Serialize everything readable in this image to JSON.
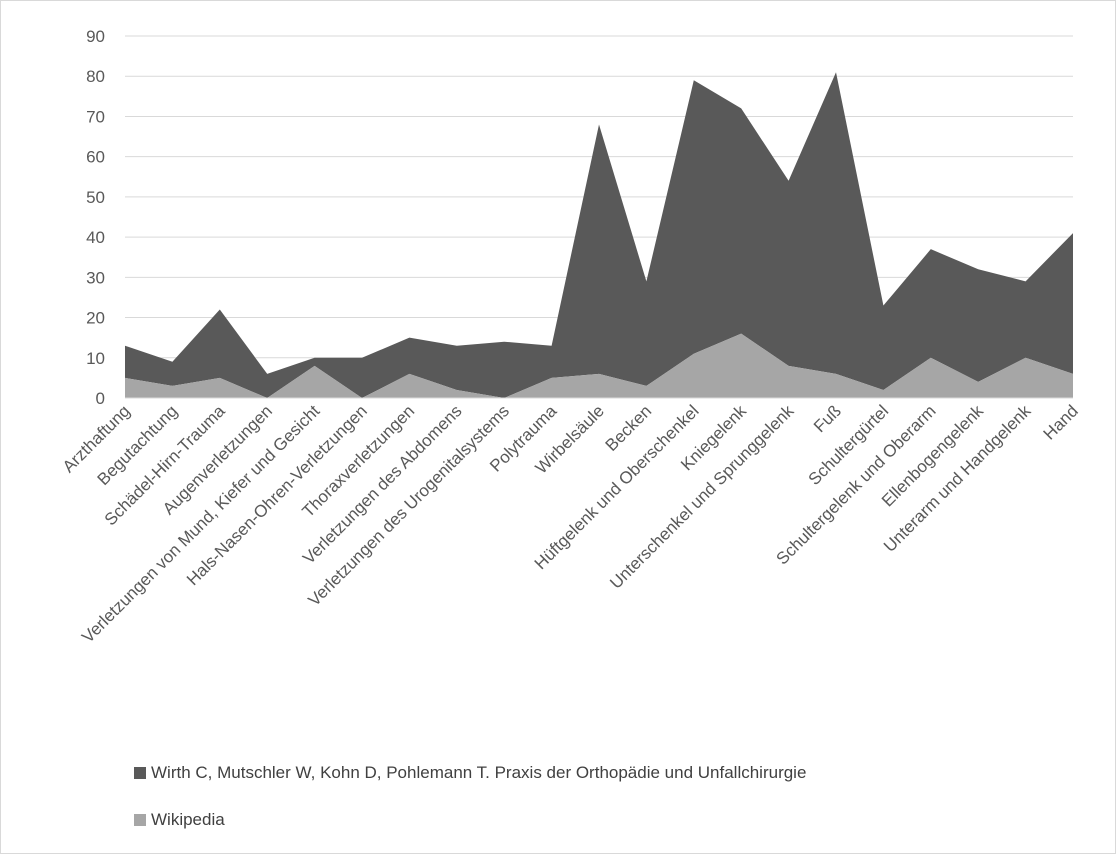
{
  "chart_data": {
    "type": "area",
    "stacked": true,
    "categories": [
      "Arzthaftung",
      "Begutachtung",
      "Schädel-Hirn-Trauma",
      "Augenverletzungen",
      "Verletzungen von Mund, Kiefer und Gesicht",
      "Hals-Nasen-Ohren-Verletzungen",
      "Thoraxverletzungen",
      "Verletzungen des Abdomens",
      "Verletzungen des Urogenitalsystems",
      "Polytrauma",
      "Wirbelsäule",
      "Becken",
      "Hüftgelenk und Oberschenkel",
      "Kniegelenk",
      "Unterschenkel und Sprunggelenk",
      "Fuß",
      "Schultergürtel",
      "Schultergelenk und Oberarm",
      "Ellenbogengelenk",
      "Unterarm und Handgelenk",
      "Hand"
    ],
    "series": [
      {
        "name": "Wirth C, Mutschler W, Kohn D, Pohlemann T. Praxis der Orthopädie und Unfallchirurgie",
        "color": "#595959",
        "values": [
          8,
          6,
          17,
          6,
          2,
          10,
          9,
          11,
          14,
          8,
          62,
          26,
          68,
          56,
          46,
          75,
          21,
          27,
          28,
          19,
          35
        ]
      },
      {
        "name": "Wikipedia",
        "color": "#a6a6a6",
        "values": [
          5,
          3,
          5,
          0,
          8,
          0,
          6,
          2,
          0,
          5,
          6,
          3,
          11,
          16,
          8,
          6,
          2,
          10,
          4,
          10,
          6
        ]
      }
    ],
    "y_ticks": [
      "0",
      "10",
      "20",
      "30",
      "40",
      "50",
      "60",
      "70",
      "80",
      "90"
    ],
    "ylim": [
      0,
      90
    ],
    "grid": true,
    "legend_position": "bottom"
  }
}
